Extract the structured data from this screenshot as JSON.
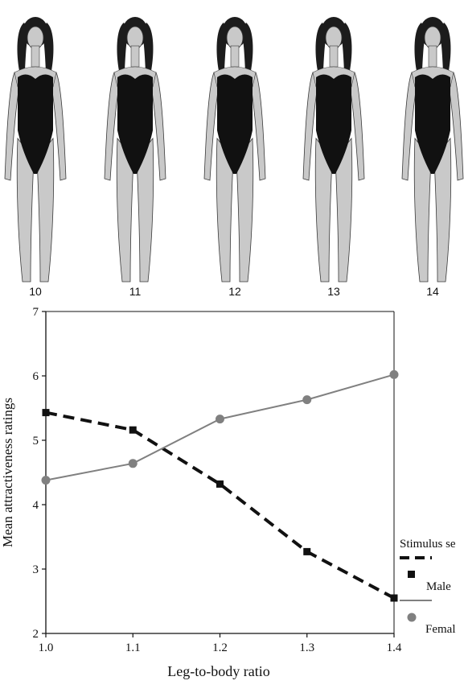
{
  "figures": {
    "labels": [
      "10",
      "11",
      "12",
      "13",
      "14"
    ]
  },
  "chart_data": {
    "type": "line",
    "title": "",
    "xlabel": "Leg-to-body ratio",
    "ylabel": "Mean attractiveness ratings",
    "x": [
      1.0,
      1.1,
      1.2,
      1.3,
      1.4
    ],
    "x_tick_labels": [
      "1.0",
      "1.1",
      "1.2",
      "1.3",
      "1.4"
    ],
    "xlim": [
      1.0,
      1.4
    ],
    "ylim": [
      2,
      7
    ],
    "y_ticks": [
      2,
      3,
      4,
      5,
      6,
      7
    ],
    "y_tick_labels": [
      "2",
      "3",
      "4",
      "5",
      "6",
      "7"
    ],
    "grid": false,
    "legend_title": "Stimulus se",
    "legend_position": "bottom-right",
    "series": [
      {
        "name": "Male",
        "values": [
          5.43,
          5.16,
          4.32,
          3.27,
          2.55
        ],
        "style": "dashed",
        "marker": "square",
        "color": "#111111"
      },
      {
        "name": "Femal",
        "values": [
          4.38,
          4.64,
          5.33,
          5.63,
          6.02
        ],
        "style": "solid",
        "marker": "circle",
        "color": "#808080"
      }
    ]
  }
}
